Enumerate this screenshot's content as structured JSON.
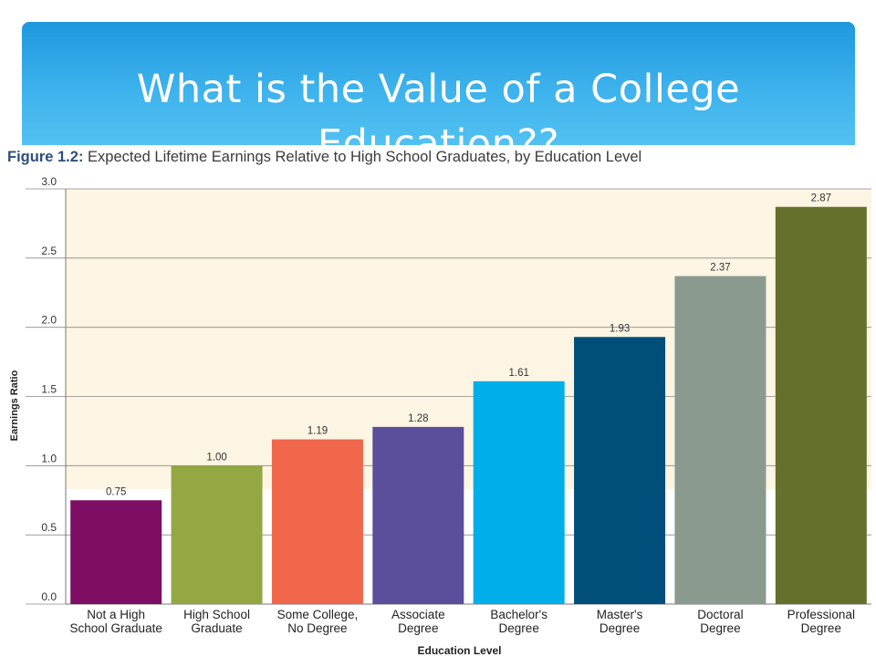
{
  "slide": {
    "title": "What is the Value of a College Education??"
  },
  "figure": {
    "label": "Figure 1.2:",
    "caption": "Expected Lifetime Earnings Relative to High School Graduates, by Education Level"
  },
  "colors": {
    "banner": "#3aade8",
    "plot_background": "#fdf5e3"
  },
  "chart_data": {
    "type": "bar",
    "title": "Expected Lifetime Earnings Relative to High School Graduates, by Education Level",
    "xlabel": "Education Level",
    "ylabel": "Earnings Ratio",
    "ylim": [
      0,
      3.0
    ],
    "yticks": [
      "0.0",
      "0.5",
      "1.0",
      "1.5",
      "2.0",
      "2.5",
      "3.0"
    ],
    "categories": [
      [
        "Not a High",
        "School Graduate"
      ],
      [
        "High School",
        "Graduate"
      ],
      [
        "Some College,",
        "No Degree"
      ],
      [
        "Associate",
        "Degree"
      ],
      [
        "Bachelor's",
        "Degree"
      ],
      [
        "Master's",
        "Degree"
      ],
      [
        "Doctoral",
        "Degree"
      ],
      [
        "Professional",
        "Degree"
      ]
    ],
    "values": [
      0.75,
      1.0,
      1.19,
      1.28,
      1.61,
      1.93,
      2.37,
      2.87
    ],
    "value_labels": [
      "0.75",
      "1.00",
      "1.19",
      "1.28",
      "1.61",
      "1.93",
      "2.37",
      "2.87"
    ],
    "colors": [
      "#7d0e63",
      "#93a742",
      "#f0674b",
      "#5b4e9b",
      "#00aeea",
      "#004f7a",
      "#8a9a8f",
      "#64702c"
    ],
    "grid": false,
    "legend": "none"
  }
}
